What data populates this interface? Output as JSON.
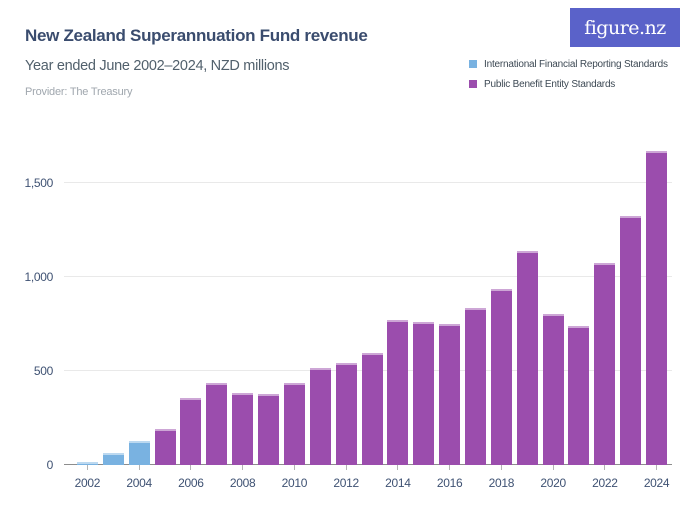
{
  "header": {
    "title": "New Zealand Superannuation Fund revenue",
    "subtitle": "Year ended June 2002–2024, NZD millions",
    "provider": "Provider: The Treasury",
    "logo_text": "figure.nz",
    "logo_bg": "#5a62c9"
  },
  "legend": {
    "items": [
      {
        "label": "International Financial Reporting Standards",
        "color": "#79b2e1"
      },
      {
        "label": "Public Benefit Entity Standards",
        "color": "#9b4dad"
      }
    ]
  },
  "chart_data": {
    "type": "bar",
    "title": "New Zealand Superannuation Fund revenue",
    "subtitle": "Year ended June 2002–2024, NZD millions",
    "provider": "The Treasury",
    "unit": "NZD millions",
    "categories": [
      2002,
      2003,
      2004,
      2005,
      2006,
      2007,
      2008,
      2009,
      2010,
      2011,
      2012,
      2013,
      2014,
      2015,
      2016,
      2017,
      2018,
      2019,
      2020,
      2021,
      2022,
      2023,
      2024
    ],
    "series": [
      {
        "name": "International Financial Reporting Standards",
        "color": "#79b2e1",
        "values": [
          15,
          65,
          130,
          null,
          null,
          null,
          null,
          null,
          null,
          null,
          null,
          null,
          null,
          null,
          null,
          null,
          null,
          null,
          null,
          null,
          null,
          null,
          null
        ]
      },
      {
        "name": "Public Benefit Entity Standards",
        "color": "#9b4dad",
        "values": [
          null,
          null,
          null,
          190,
          355,
          435,
          385,
          380,
          435,
          515,
          540,
          595,
          770,
          760,
          750,
          835,
          935,
          1140,
          805,
          740,
          1075,
          1325,
          1670
        ]
      }
    ],
    "ylim": [
      0,
      1750
    ],
    "yticks": [
      0,
      500,
      1000,
      1500
    ],
    "ytick_labels": [
      "0",
      "500",
      "1,000",
      "1,500"
    ],
    "xtick_labels": [
      "2002",
      "2004",
      "2006",
      "2008",
      "2010",
      "2012",
      "2014",
      "2016",
      "2018",
      "2020",
      "2022",
      "2024"
    ],
    "grid": "horizontal",
    "legend_position": "top-right"
  }
}
